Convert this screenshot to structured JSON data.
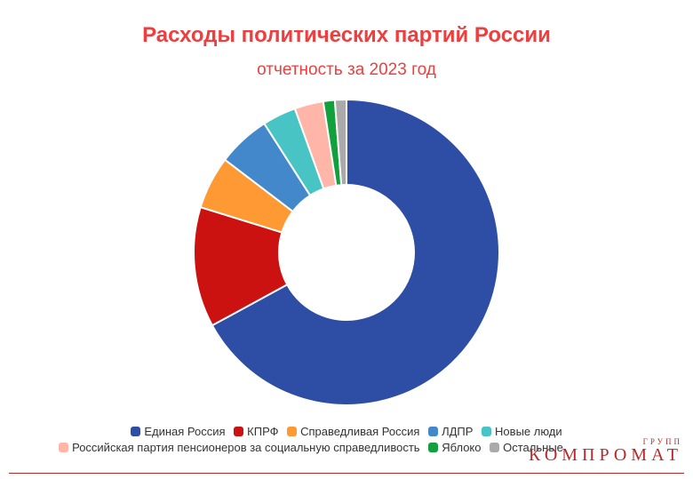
{
  "header": {
    "title": "Расходы политических партий России",
    "subtitle": "отчетность за 2023 год"
  },
  "chart_data": {
    "type": "pie",
    "donut": true,
    "title": "Расходы политических партий России",
    "subtitle": "отчетность за 2023 год",
    "legend_position": "bottom",
    "series": [
      {
        "name": "Единая Россия",
        "value": 66.0,
        "color": "#2e4ea5"
      },
      {
        "name": "КПРФ",
        "value": 12.5,
        "color": "#cc1111"
      },
      {
        "name": "Справедливая Россия",
        "value": 5.5,
        "color": "#ff9933"
      },
      {
        "name": "ЛДПР",
        "value": 5.5,
        "color": "#4488cc"
      },
      {
        "name": "Новые люди",
        "value": 3.5,
        "color": "#48c4c4"
      },
      {
        "name": "Российская партия пенсионеров за социальную справедливость",
        "value": 3.0,
        "color": "#ffb6a8"
      },
      {
        "name": "Яблоко",
        "value": 1.2,
        "color": "#11a03c"
      },
      {
        "name": "Остальные",
        "value": 1.2,
        "color": "#aaaaaa"
      }
    ]
  },
  "watermark": {
    "small": "ГРУПП",
    "big": "КОМПРОМАТ"
  }
}
